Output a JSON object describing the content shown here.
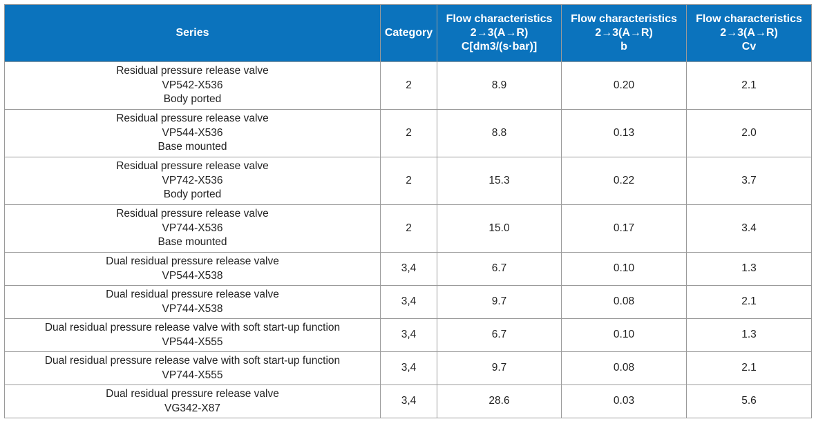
{
  "table": {
    "headers": [
      {
        "lines": [
          "Series"
        ]
      },
      {
        "lines": [
          "Category"
        ]
      },
      {
        "lines": [
          "Flow characteristics",
          "2→3(A→R)",
          "C[dm3/(s·bar)]"
        ]
      },
      {
        "lines": [
          "Flow characteristics",
          "2→3(A→R)",
          "b"
        ]
      },
      {
        "lines": [
          "Flow characteristics",
          "2→3(A→R)",
          "Cv"
        ]
      }
    ],
    "rows": [
      {
        "series": [
          "Residual pressure release valve",
          "VP542-X536",
          "Body ported"
        ],
        "category": "2",
        "c": "8.9",
        "b": "0.20",
        "cv": "2.1"
      },
      {
        "series": [
          "Residual pressure release valve",
          "VP544-X536",
          "Base mounted"
        ],
        "category": "2",
        "c": "8.8",
        "b": "0.13",
        "cv": "2.0"
      },
      {
        "series": [
          "Residual pressure release valve",
          "VP742-X536",
          "Body ported"
        ],
        "category": "2",
        "c": "15.3",
        "b": "0.22",
        "cv": "3.7"
      },
      {
        "series": [
          "Residual pressure release valve",
          "VP744-X536",
          "Base mounted"
        ],
        "category": "2",
        "c": "15.0",
        "b": "0.17",
        "cv": "3.4"
      },
      {
        "series": [
          "Dual residual pressure release valve",
          "VP544-X538"
        ],
        "category": "3,4",
        "c": "6.7",
        "b": "0.10",
        "cv": "1.3"
      },
      {
        "series": [
          "Dual residual pressure release valve",
          "VP744-X538"
        ],
        "category": "3,4",
        "c": "9.7",
        "b": "0.08",
        "cv": "2.1"
      },
      {
        "series": [
          "Dual residual pressure release valve with soft start-up function",
          "VP544-X555"
        ],
        "category": "3,4",
        "c": "6.7",
        "b": "0.10",
        "cv": "1.3"
      },
      {
        "series": [
          "Dual residual pressure release valve with soft start-up function",
          "VP744-X555"
        ],
        "category": "3,4",
        "c": "9.7",
        "b": "0.08",
        "cv": "2.1"
      },
      {
        "series": [
          "Dual residual pressure release valve",
          "VG342-X87"
        ],
        "category": "3,4",
        "c": "28.6",
        "b": "0.03",
        "cv": "5.6"
      }
    ]
  }
}
